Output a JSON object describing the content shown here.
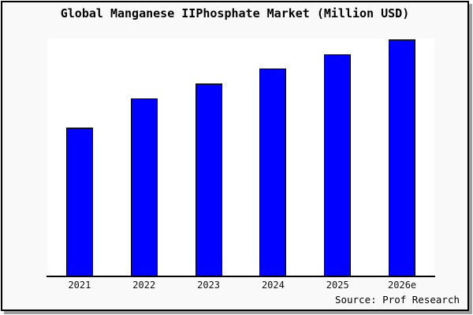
{
  "chart_data": {
    "type": "bar",
    "title": "Global Manganese IIPhosphate Market (Million USD)",
    "categories": [
      "2021",
      "2022",
      "2023",
      "2024",
      "2025",
      "2026e"
    ],
    "values": [
      100,
      120,
      130,
      140,
      150,
      160
    ],
    "xlabel": "",
    "ylabel": "",
    "ylim": [
      0,
      160
    ],
    "grid": false,
    "legend": false,
    "y_axis_labels_visible": false,
    "bar_color": "#0000fe",
    "bar_border_color": "#000000",
    "source": "Source: Prof Research"
  },
  "colors": {
    "page_background": "#f9f9f9",
    "plot_background": "#ffffff",
    "frame_border": "#000000",
    "frame_shadow": "#9e9e9e",
    "text": "#000000"
  }
}
